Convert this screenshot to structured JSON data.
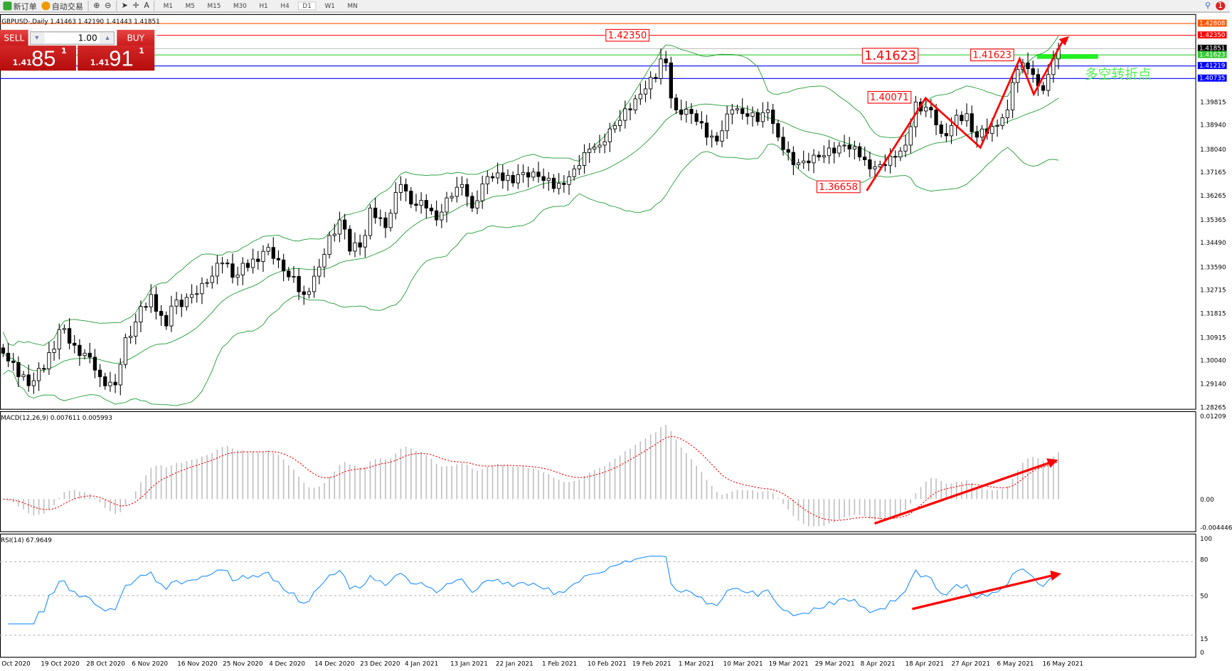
{
  "toolbar": {
    "new_order": "新订单",
    "auto_trading": "自动交易",
    "timeframes": [
      "M1",
      "M5",
      "M15",
      "M30",
      "H1",
      "H4",
      "D1",
      "W1",
      "MN"
    ],
    "active_timeframe": "D1",
    "notification_count": "1"
  },
  "chart_header": "GBPUSD-,Daily  1.41463 1.42190 1.41443 1.41851",
  "trade_panel": {
    "sell": "SELL",
    "buy": "BUY",
    "lot": "1.00",
    "sell_small": "1.41",
    "sell_big": "85",
    "sell_pip": "1",
    "buy_small": "1.41",
    "buy_big": "91",
    "buy_pip": "1"
  },
  "colors": {
    "bull_bear_line": "#000000",
    "bands": "#1e9b30",
    "macd_hist": "#c0c0c0",
    "macd_signal": "#ff0000",
    "rsi": "#1e90ff",
    "annotation": "#ff0000"
  },
  "price_axis": [
    "1.39815",
    "1.38940",
    "1.38040",
    "1.37165",
    "1.36265",
    "1.35365",
    "1.34490",
    "1.33590",
    "1.32715",
    "1.31815",
    "1.30915",
    "1.30040",
    "1.29140",
    "1.28265"
  ],
  "levels": [
    {
      "price": "1.42808",
      "color": "#ff5500"
    },
    {
      "price": "1.42350",
      "color": "#ff0000"
    },
    {
      "price": "1.41851",
      "color": "#000000"
    },
    {
      "price": "1.41623",
      "color": "#33cc33"
    },
    {
      "price": "1.41219",
      "color": "#0000ff"
    },
    {
      "price": "1.40735",
      "color": "#0000ff"
    }
  ],
  "annotations": {
    "high": "1.42350",
    "pivot_big": "1.41623",
    "swing_high": "1.40071",
    "pivot": "1.41623",
    "low": "1.36658",
    "note": "多空转折点"
  },
  "macd": {
    "label": "MACD(12,26,9) 0.007611 0.005993",
    "axis": [
      "0.01209",
      "0.00",
      "-0.004446"
    ]
  },
  "rsi": {
    "label": "RSI(14) 67.9649",
    "axis": [
      "100",
      "80",
      "50",
      "15",
      "0"
    ]
  },
  "chart_data": {
    "type": "candlestick",
    "symbol": "GBPUSD",
    "timeframe": "Daily",
    "ylim": [
      1.28265,
      1.42808
    ],
    "x_ticks": [
      "Oct 2020",
      "19 Oct 2020",
      "28 Oct 2020",
      "6 Nov 2020",
      "16 Nov 2020",
      "25 Nov 2020",
      "4 Dec 2020",
      "14 Dec 2020",
      "23 Dec 2020",
      "4 Jan 2021",
      "13 Jan 2021",
      "22 Jan 2021",
      "1 Feb 2021",
      "10 Feb 2021",
      "19 Feb 2021",
      "1 Mar 2021",
      "10 Mar 2021",
      "19 Mar 2021",
      "29 Mar 2021",
      "8 Apr 2021",
      "18 Apr 2021",
      "27 Apr 2021",
      "6 May 2021",
      "16 May 2021"
    ],
    "close_path": [
      [
        0,
        1.3034
      ],
      [
        3,
        1.2945
      ],
      [
        6,
        1.293
      ],
      [
        8,
        1.2975
      ],
      [
        11,
        1.3123
      ],
      [
        14,
        1.3064
      ],
      [
        17,
        1.3019
      ],
      [
        19,
        1.2945
      ],
      [
        22,
        1.2914
      ],
      [
        24,
        1.3093
      ],
      [
        26,
        1.3152
      ],
      [
        29,
        1.3256
      ],
      [
        32,
        1.3137
      ],
      [
        33,
        1.3212
      ],
      [
        37,
        1.3256
      ],
      [
        40,
        1.3301
      ],
      [
        43,
        1.3375
      ],
      [
        46,
        1.333
      ],
      [
        49,
        1.339
      ],
      [
        52,
        1.3434
      ],
      [
        55,
        1.3345
      ],
      [
        59,
        1.3256
      ],
      [
        62,
        1.336
      ],
      [
        64,
        1.3479
      ],
      [
        66,
        1.3538
      ],
      [
        68,
        1.342
      ],
      [
        71,
        1.3479
      ],
      [
        72,
        1.3583
      ],
      [
        75,
        1.3509
      ],
      [
        78,
        1.3672
      ],
      [
        80,
        1.3598
      ],
      [
        83,
        1.3583
      ],
      [
        85,
        1.3538
      ],
      [
        88,
        1.3627
      ],
      [
        90,
        1.3672
      ],
      [
        92,
        1.3583
      ],
      [
        95,
        1.3702
      ],
      [
        98,
        1.3687
      ],
      [
        102,
        1.3717
      ],
      [
        105,
        1.3702
      ],
      [
        108,
        1.3657
      ],
      [
        110,
        1.3672
      ],
      [
        112,
        1.3731
      ],
      [
        115,
        1.3806
      ],
      [
        117,
        1.3821
      ],
      [
        120,
        1.3895
      ],
      [
        123,
        1.3954
      ],
      [
        125,
        1.4014
      ],
      [
        128,
        1.4073
      ],
      [
        129,
        1.4147
      ],
      [
        130,
        1.4132
      ],
      [
        131,
        1.3999
      ],
      [
        132,
        1.3954
      ],
      [
        135,
        1.394
      ],
      [
        138,
        1.3851
      ],
      [
        140,
        1.3836
      ],
      [
        143,
        1.3954
      ],
      [
        145,
        1.394
      ],
      [
        148,
        1.391
      ],
      [
        150,
        1.3954
      ],
      [
        152,
        1.3851
      ],
      [
        155,
        1.3747
      ],
      [
        157,
        1.3761
      ],
      [
        160,
        1.3776
      ],
      [
        163,
        1.3791
      ],
      [
        165,
        1.3821
      ],
      [
        168,
        1.3776
      ],
      [
        170,
        1.3731
      ],
      [
        172,
        1.3747
      ],
      [
        175,
        1.3776
      ],
      [
        177,
        1.3821
      ],
      [
        179,
        1.3984
      ],
      [
        182,
        1.3954
      ],
      [
        184,
        1.3865
      ],
      [
        186,
        1.3895
      ],
      [
        189,
        1.394
      ],
      [
        191,
        1.3851
      ],
      [
        193,
        1.3865
      ],
      [
        195,
        1.3895
      ],
      [
        197,
        1.3954
      ],
      [
        198,
        1.4058
      ],
      [
        200,
        1.4132
      ],
      [
        202,
        1.4088
      ],
      [
        204,
        1.4028
      ],
      [
        205,
        1.4088
      ],
      [
        206,
        1.4147
      ],
      [
        207,
        1.41851
      ]
    ],
    "indicators": [
      "Bollinger Bands(20,2)",
      "MACD(12,26,9)",
      "RSI(14)"
    ],
    "rsi_levels": [
      80,
      50,
      15
    ]
  }
}
